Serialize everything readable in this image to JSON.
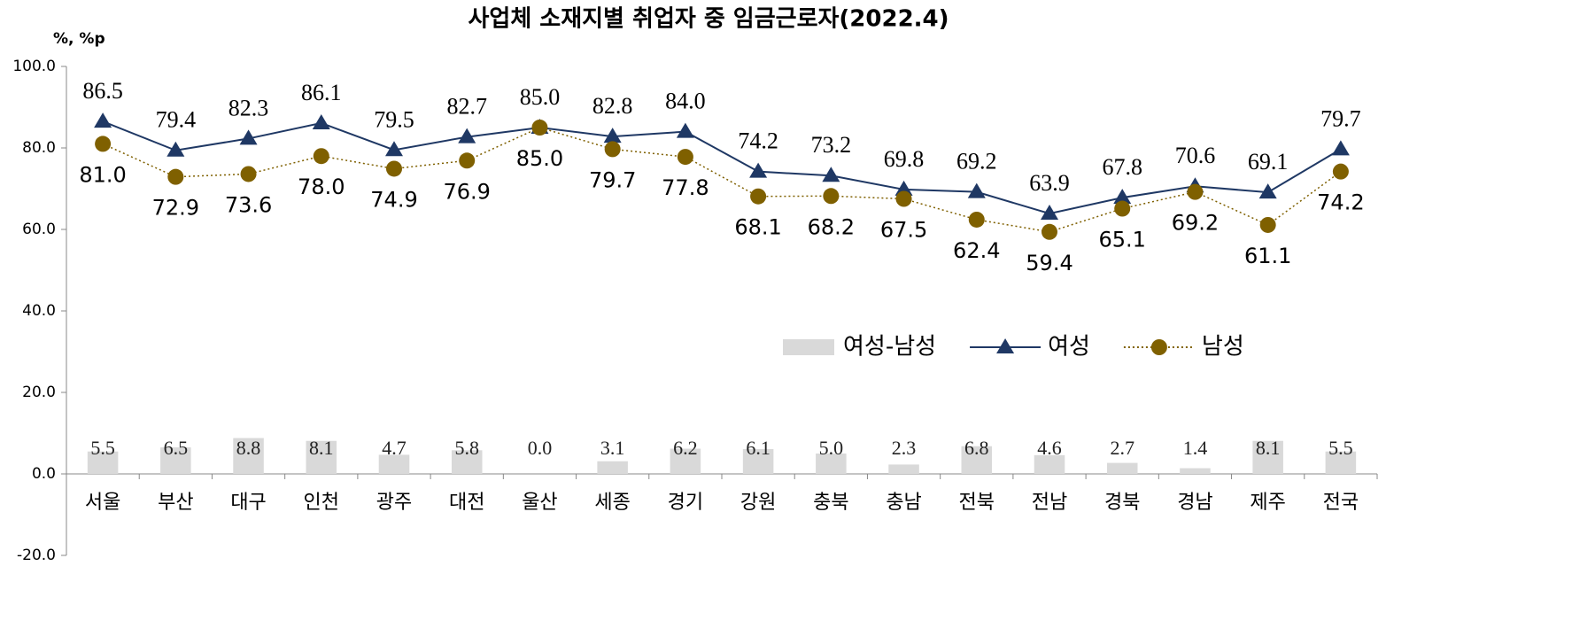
{
  "chart_data": {
    "type": "combo",
    "title": "사업체 소재지별 취업자 중 임금근로자(2022.4)",
    "y_unit": "%, %p",
    "categories": [
      "서울",
      "부산",
      "대구",
      "인천",
      "광주",
      "대전",
      "울산",
      "세종",
      "경기",
      "강원",
      "충북",
      "충남",
      "전북",
      "전남",
      "경북",
      "경남",
      "제주",
      "전국"
    ],
    "ylim": [
      -20,
      100
    ],
    "yticks": [
      {
        "value": 100,
        "label": "100.0"
      },
      {
        "value": 80,
        "label": "80.0"
      },
      {
        "value": 60,
        "label": "60.0"
      },
      {
        "value": 40,
        "label": "40.0"
      },
      {
        "value": 20,
        "label": "20.0"
      },
      {
        "value": 0,
        "label": "0.0"
      },
      {
        "value": -20,
        "label": "-20.0"
      }
    ],
    "grid": false,
    "series": [
      {
        "name": "여성-남성",
        "type": "bar",
        "color": "#d9d9d9",
        "values": [
          5.5,
          6.5,
          8.8,
          8.1,
          4.7,
          5.8,
          0.0,
          3.1,
          6.2,
          6.1,
          5.0,
          2.3,
          6.8,
          4.6,
          2.7,
          1.4,
          8.1,
          5.5
        ],
        "value_labels": [
          "5.5",
          "6.5",
          "8.8",
          "8.1",
          "4.7",
          "5.8",
          "0.0",
          "3.1",
          "6.2",
          "6.1",
          "5.0",
          "2.3",
          "6.8",
          "4.6",
          "2.7",
          "1.4",
          "8.1",
          "5.5"
        ]
      },
      {
        "name": "여성",
        "type": "line",
        "color": "#1f3864",
        "marker": "triangle",
        "line_style": "solid",
        "values": [
          86.5,
          79.4,
          82.3,
          86.1,
          79.5,
          82.7,
          85.0,
          82.8,
          84.0,
          74.2,
          73.2,
          69.8,
          69.2,
          63.9,
          67.8,
          70.6,
          69.1,
          79.7
        ],
        "value_labels": [
          "86.5",
          "79.4",
          "82.3",
          "86.1",
          "79.5",
          "82.7",
          "85.0",
          "82.8",
          "84.0",
          "74.2",
          "73.2",
          "69.8",
          "69.2",
          "63.9",
          "67.8",
          "70.6",
          "69.1",
          "79.7"
        ]
      },
      {
        "name": "남성",
        "type": "line",
        "color": "#7f6000",
        "marker": "circle",
        "line_style": "dotted",
        "values": [
          81.0,
          72.9,
          73.6,
          78.0,
          74.9,
          76.9,
          85.0,
          79.7,
          77.8,
          68.1,
          68.2,
          67.5,
          62.4,
          59.4,
          65.1,
          69.2,
          61.1,
          74.2
        ],
        "value_labels": [
          "81.0",
          "72.9",
          "73.6",
          "78.0",
          "74.9",
          "76.9",
          "85.0",
          "79.7",
          "77.8",
          "68.1",
          "68.2",
          "67.5",
          "62.4",
          "59.4",
          "65.1",
          "69.2",
          "61.1",
          "74.2"
        ]
      }
    ]
  }
}
